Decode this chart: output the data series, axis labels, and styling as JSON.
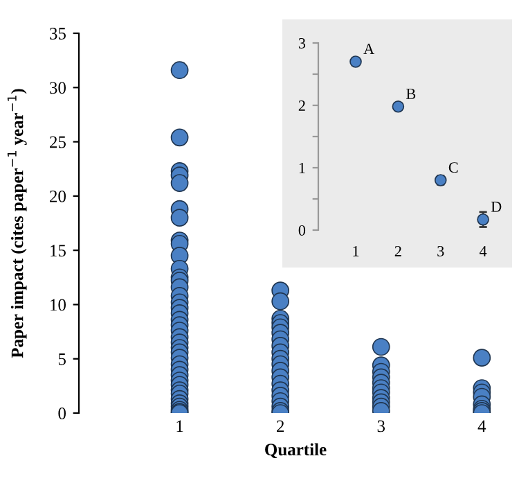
{
  "chart_data": [
    {
      "type": "scatter",
      "xlabel": "Quartile",
      "ylabel": "Paper impact (cites paper$^{−1}$ year$^{−1}$)",
      "categories": [
        "1",
        "2",
        "3",
        "4"
      ],
      "ylim": [
        0,
        35
      ],
      "yticks": [
        0,
        5,
        10,
        15,
        20,
        25,
        30,
        35
      ],
      "marker": "circle",
      "grid": false,
      "series": [
        {
          "color": "#4a80c4",
          "x": [
            "1",
            "1",
            "1",
            "1",
            "1",
            "1",
            "1",
            "1",
            "1",
            "1",
            "1",
            "1",
            "1",
            "1",
            "1",
            "1",
            "1",
            "1",
            "1",
            "1",
            "1",
            "1",
            "1",
            "1",
            "1",
            "1",
            "1",
            "1",
            "1",
            "1",
            "1",
            "1",
            "1",
            "1",
            "1",
            "1",
            "1",
            "1",
            "1",
            "2",
            "2",
            "2",
            "2",
            "2",
            "2",
            "2",
            "2",
            "2",
            "2",
            "2",
            "2",
            "2",
            "2",
            "2",
            "2",
            "2",
            "2",
            "2",
            "2",
            "3",
            "3",
            "3",
            "3",
            "3",
            "3",
            "3",
            "3",
            "3",
            "3",
            "3",
            "4",
            "4",
            "4",
            "4",
            "4",
            "4",
            "4",
            "4"
          ],
          "values": [
            31.6,
            25.4,
            22.3,
            21.9,
            21.2,
            18.8,
            18.0,
            15.9,
            15.6,
            14.5,
            13.3,
            12.5,
            12.2,
            11.6,
            10.8,
            10.2,
            9.7,
            9.2,
            8.6,
            8.1,
            7.6,
            7.0,
            6.5,
            6.0,
            5.6,
            5.1,
            4.5,
            4.0,
            3.5,
            3.0,
            2.6,
            2.1,
            1.8,
            1.3,
            0.9,
            0.6,
            0.3,
            0.1,
            0,
            11.3,
            10.3,
            8.7,
            8.3,
            7.9,
            7.4,
            6.8,
            6.2,
            5.6,
            5.0,
            4.5,
            3.9,
            3.3,
            2.7,
            2.1,
            1.6,
            1.1,
            0.6,
            0.2,
            0,
            6.1,
            4.4,
            3.8,
            3.3,
            2.8,
            2.3,
            1.9,
            1.4,
            1.0,
            0.6,
            0.2,
            5.1,
            2.3,
            1.9,
            1.5,
            0.8,
            0.4,
            0.2,
            0
          ]
        }
      ]
    },
    {
      "type": "scatter",
      "categories": [
        "1",
        "2",
        "3",
        "4"
      ],
      "ylim": [
        0,
        3
      ],
      "yticks": [
        0,
        {
          "value": 0.5,
          "label": null
        },
        1,
        {
          "value": 1.5,
          "label": null
        },
        2,
        {
          "value": 2.5,
          "label": null
        },
        3
      ],
      "marker": "circle",
      "grid": false,
      "series": [
        {
          "color": "#4a80c4",
          "values": [
            2.7,
            1.98,
            0.8,
            0.17
          ],
          "errors": [
            null,
            null,
            0.07,
            0.12
          ]
        }
      ],
      "annotations": [
        {
          "text": "A",
          "x": "1",
          "y": 2.7
        },
        {
          "text": "B",
          "x": "2",
          "y": 1.98
        },
        {
          "text": "C",
          "x": "3",
          "y": 0.8
        },
        {
          "text": "D",
          "x": "4",
          "y": 0.17
        }
      ]
    }
  ]
}
